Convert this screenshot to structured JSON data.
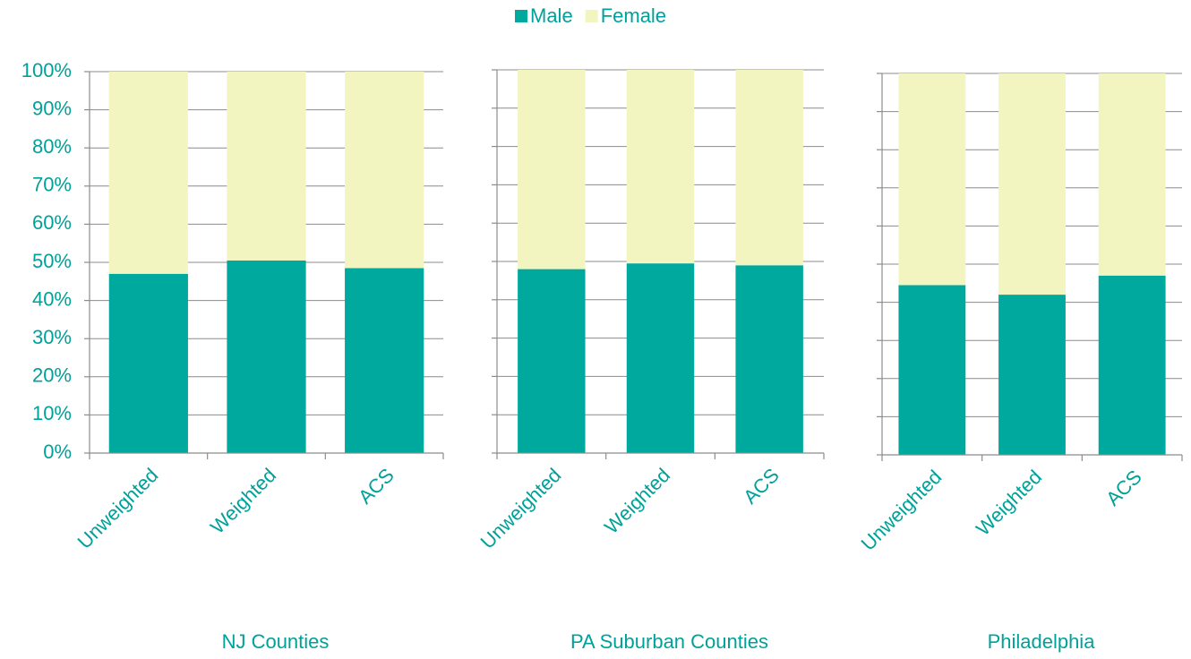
{
  "chart_data": [
    {
      "type": "stacked_bar",
      "title": "NJ Counties",
      "categories": [
        "Unweighted",
        "Weighted",
        "ACS"
      ],
      "series": [
        {
          "name": "Male",
          "color": "#00a99d",
          "values": [
            47,
            50.5,
            48.5
          ]
        },
        {
          "name": "Female",
          "color": "#f3f5c0",
          "values": [
            53,
            49.5,
            51.5
          ]
        }
      ],
      "ylim": [
        0,
        100
      ],
      "yticks": [
        {
          "value": 0,
          "label": "0%"
        },
        {
          "value": 10,
          "label": "10%"
        },
        {
          "value": 20,
          "label": "20%"
        },
        {
          "value": 30,
          "label": "30%"
        },
        {
          "value": 40,
          "label": "40%"
        },
        {
          "value": 50,
          "label": "50%"
        },
        {
          "value": 60,
          "label": "60%"
        },
        {
          "value": 70,
          "label": "70%"
        },
        {
          "value": 80,
          "label": "80%"
        },
        {
          "value": 90,
          "label": "90%"
        },
        {
          "value": 100,
          "label": "100%"
        }
      ],
      "grid": true,
      "legend": "top"
    },
    {
      "type": "stacked_bar",
      "title": "PA Suburban Counties",
      "categories": [
        "Unweighted",
        "Weighted",
        "ACS"
      ],
      "series": [
        {
          "name": "Male",
          "color": "#00a99d",
          "values": [
            48,
            49.5,
            49
          ]
        },
        {
          "name": "Female",
          "color": "#f3f5c0",
          "values": [
            52,
            50.5,
            51
          ]
        }
      ],
      "ylim": [
        0,
        100
      ],
      "yticks": [
        0,
        10,
        20,
        30,
        40,
        50,
        60,
        70,
        80,
        90,
        100
      ],
      "grid": true
    },
    {
      "type": "stacked_bar",
      "title": "Philadelphia",
      "categories": [
        "Unweighted",
        "Weighted",
        "ACS"
      ],
      "series": [
        {
          "name": "Male",
          "color": "#00a99d",
          "values": [
            44.5,
            42,
            47
          ]
        },
        {
          "name": "Female",
          "color": "#f3f5c0",
          "values": [
            55.5,
            58,
            53
          ]
        }
      ],
      "ylim": [
        0,
        100
      ],
      "yticks": [
        0,
        10,
        20,
        30,
        40,
        50,
        60,
        70,
        80,
        90,
        100
      ],
      "grid": true
    }
  ]
}
